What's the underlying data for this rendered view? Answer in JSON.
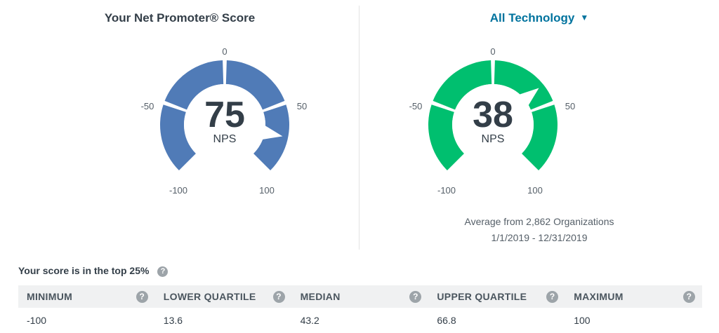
{
  "left": {
    "title": "Your Net Promoter® Score",
    "score": "75",
    "unit": "NPS",
    "ticks": {
      "min": "-100",
      "neg50": "-50",
      "zero": "0",
      "pos50": "50",
      "max": "100"
    },
    "color": "#507bb7",
    "needle_value": 75
  },
  "right": {
    "title": "All Technology",
    "caret_icon": "caret-down-icon",
    "score": "38",
    "unit": "NPS",
    "ticks": {
      "min": "-100",
      "neg50": "-50",
      "zero": "0",
      "pos50": "50",
      "max": "100"
    },
    "color": "#00bf6f",
    "needle_value": 38,
    "average_text": "Average from 2,862 Organizations",
    "date_range": "1/1/2019 - 12/31/2019"
  },
  "summary": {
    "text": "Your score is in the top 25%",
    "help_icon": "question-icon"
  },
  "table": {
    "headers": [
      "MINIMUM",
      "LOWER QUARTILE",
      "MEDIAN",
      "UPPER QUARTILE",
      "MAXIMUM"
    ],
    "values": [
      "-100",
      "13.6",
      "43.2",
      "66.8",
      "100"
    ]
  },
  "colors": {
    "header_bg": "#f0f1f2",
    "link": "#00739e",
    "help_icon": "#9da4a9"
  }
}
